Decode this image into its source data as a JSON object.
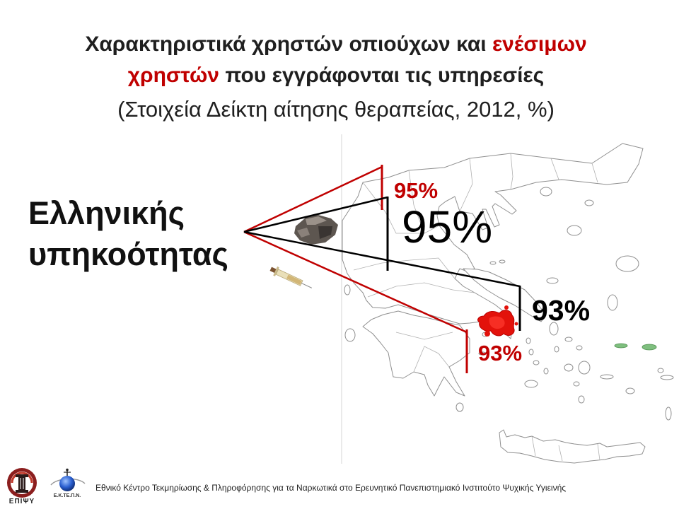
{
  "slide": {
    "title": {
      "line1_text": "Χαρακτηριστικά χρηστών οπιούχων και",
      "line1_highlight": "ενέσιμων",
      "line2_highlight": "χρηστών",
      "line2_text": "που εγγράφονται τις υπηρεσίες",
      "subtitle": "(Στοιχεία Δείκτη αίτησης θεραπείας, 2012, %)"
    },
    "category_label": {
      "line1": "Ελληνικής",
      "line2": "υπηκοότητας"
    },
    "values": {
      "red_upper": "95%",
      "black_upper": "95%",
      "black_lower": "93%",
      "red_lower": "93%"
    },
    "icons": {
      "substance": "heroin-rock-icon",
      "injection": "syringe-icon",
      "map": "greece-map-icon"
    },
    "colors": {
      "text": "#1f1f1f",
      "accent_red": "#c00000",
      "line_black": "#000000",
      "map_outline": "#8f8f8f",
      "map_highlight": "#e3120b",
      "island_highlight": "#7fbf7f"
    }
  },
  "footer": {
    "logo_left_text": "ΕΠΙΨΥ",
    "logo_right_text": "Ε.Κ.ΤΕ.Π.Ν.",
    "institution": "Εθνικό Κέντρο Τεκμηρίωσης & Πληροφόρησης για τα Ναρκωτικά στο Ερευνητικό Πανεπιστημιακό Ινστιτούτο Ψυχικής Υγιεινής"
  }
}
